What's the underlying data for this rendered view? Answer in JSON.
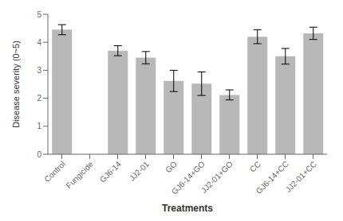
{
  "chart_data": {
    "type": "bar",
    "categories": [
      "Control",
      "Fungicide",
      "GJ6-14",
      "JJ2-01",
      "GO",
      "GJ6-14+GO",
      "JJ2-01+GO",
      "CC",
      "GJ6-14+CC",
      "JJ2-01+CC"
    ],
    "values": [
      4.45,
      0.0,
      3.7,
      3.45,
      2.62,
      2.52,
      2.12,
      4.2,
      3.5,
      4.32
    ],
    "errors": [
      0.18,
      0.0,
      0.18,
      0.22,
      0.38,
      0.42,
      0.18,
      0.25,
      0.28,
      0.22
    ],
    "color": "#b8b8b8",
    "xlabel": "Treatments",
    "ylabel": "Disease severity (0~5)",
    "ylim": [
      0,
      5
    ],
    "yticks": [
      0,
      1,
      2,
      3,
      4,
      5
    ],
    "grid": false
  }
}
